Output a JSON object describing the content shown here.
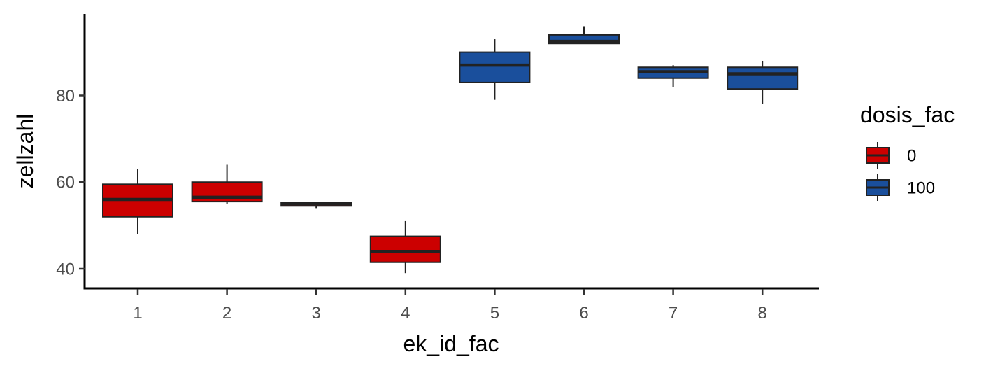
{
  "chart_data": {
    "type": "boxplot",
    "title": "",
    "xlabel": "ek_id_fac",
    "ylabel": "zellzahl",
    "ylim": [
      35.8,
      98.5
    ],
    "y_ticks": [
      40,
      60,
      80
    ],
    "grid": false,
    "legend": {
      "title": "dosis_fac",
      "placement": "right",
      "entries": [
        {
          "label": "0",
          "color": "#CC0000"
        },
        {
          "label": "100",
          "color": "#1A4F9C"
        }
      ]
    },
    "categories": [
      "1",
      "2",
      "3",
      "4",
      "5",
      "6",
      "7",
      "8"
    ],
    "boxes": [
      {
        "category": "1",
        "group": "0",
        "whisker_low": 48,
        "q1": 52,
        "median": 56,
        "q3": 59.5,
        "whisker_high": 63
      },
      {
        "category": "2",
        "group": "0",
        "whisker_low": 55,
        "q1": 55.5,
        "median": 56.5,
        "q3": 60,
        "whisker_high": 64
      },
      {
        "category": "3",
        "group": "0",
        "whisker_low": 54,
        "q1": 54.5,
        "median": 55,
        "q3": 55.2,
        "whisker_high": 55.3
      },
      {
        "category": "4",
        "group": "0",
        "whisker_low": 39,
        "q1": 41.5,
        "median": 44,
        "q3": 47.5,
        "whisker_high": 51
      },
      {
        "category": "5",
        "group": "100",
        "whisker_low": 79,
        "q1": 83,
        "median": 87,
        "q3": 90,
        "whisker_high": 93
      },
      {
        "category": "6",
        "group": "100",
        "whisker_low": 92,
        "q1": 92,
        "median": 92.5,
        "q3": 94,
        "whisker_high": 96
      },
      {
        "category": "7",
        "group": "100",
        "whisker_low": 82,
        "q1": 84,
        "median": 85.5,
        "q3": 86.5,
        "whisker_high": 87
      },
      {
        "category": "8",
        "group": "100",
        "whisker_low": 78,
        "q1": 81.5,
        "median": 85,
        "q3": 86.5,
        "whisker_high": 88
      }
    ]
  }
}
